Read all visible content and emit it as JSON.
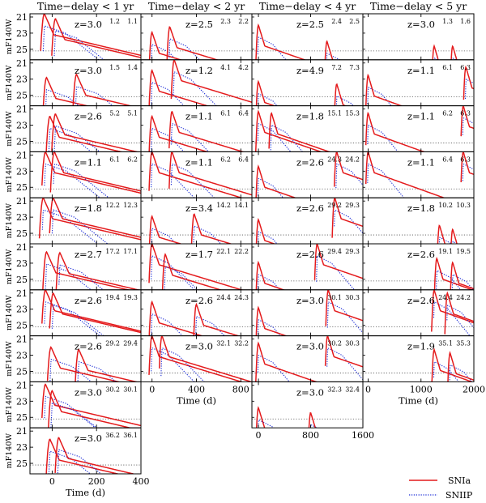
{
  "chart_data": {
    "type": "line",
    "figure_kind": "multi-panel light-curve grid",
    "y_axis_label": "mF140W",
    "y_axis_reversed": true,
    "y_ticks": [
      21,
      23,
      25
    ],
    "ylim": [
      26.3,
      20.6
    ],
    "threshold_mag": 25.2,
    "legend": [
      {
        "name": "SNIa",
        "color": "#e41a1c",
        "dash": "solid"
      },
      {
        "name": "SNIIP",
        "color": "#1f2fd6",
        "dash": "dotted"
      }
    ],
    "columns": [
      {
        "title": "Time−delay < 1 yr",
        "xlim": [
          -100,
          400
        ],
        "xticks": [
          0,
          200,
          400
        ],
        "xlabel": "Time (d)",
        "panels": [
          {
            "z": "z=3.0",
            "m": [
              "1.2",
              "1.1"
            ],
            "peaks": [
              {
                "t": -35,
                "m": 20.6
              },
              {
                "t": 15,
                "m": 21.2
              }
            ]
          },
          {
            "z": "z=3.0",
            "m": [
              "1.5",
              "1.4"
            ],
            "peaks": [
              {
                "t": -25,
                "m": 22.8
              },
              {
                "t": 110,
                "m": 22.4
              }
            ]
          },
          {
            "z": "z=2.6",
            "m": [
              "5.2",
              "5.1"
            ],
            "peaks": [
              {
                "t": -10,
                "m": 21.9
              },
              {
                "t": 15,
                "m": 21.6
              }
            ]
          },
          {
            "z": "z=1.1",
            "m": [
              "6.1",
              "6.2"
            ],
            "peaks": [
              {
                "t": -30,
                "m": 20.6
              },
              {
                "t": 10,
                "m": 20.6
              }
            ]
          },
          {
            "z": "z=1.8",
            "m": [
              "12.2",
              "12.3"
            ],
            "peaks": [
              {
                "t": -40,
                "m": 20.6
              },
              {
                "t": 5,
                "m": 20.6
              }
            ]
          },
          {
            "z": "z=2.7",
            "m": [
              "17.2",
              "17.1"
            ],
            "peaks": [
              {
                "t": -25,
                "m": 21.6
              },
              {
                "t": 35,
                "m": 21.7
              }
            ]
          },
          {
            "z": "z=2.6",
            "m": [
              "19.4",
              "19.3"
            ],
            "peaks": [
              {
                "t": -30,
                "m": 20.6
              },
              {
                "t": 5,
                "m": 21.0
              }
            ]
          },
          {
            "z": "z=2.6",
            "m": [
              "29.2",
              "29.4"
            ],
            "peaks": [
              {
                "t": -5,
                "m": 22.0
              },
              {
                "t": 120,
                "m": 22.3
              }
            ]
          },
          {
            "z": "z=3.0",
            "m": [
              "30.2",
              "30.1"
            ],
            "peaks": [
              {
                "t": -30,
                "m": 20.9
              },
              {
                "t": 0,
                "m": 21.7
              }
            ]
          },
          {
            "z": "z=3.0",
            "m": [
              "36.2",
              "36.1"
            ],
            "peaks": [
              {
                "t": -10,
                "m": 22.0
              },
              {
                "t": 30,
                "m": 21.8
              }
            ]
          }
        ]
      },
      {
        "title": "Time−delay < 2 yr",
        "xlim": [
          -100,
          900
        ],
        "xticks": [
          0,
          400,
          800
        ],
        "xlabel": "Time (d)",
        "panels": [
          {
            "z": "z=2.5",
            "m": [
              "2.3",
              "2.2"
            ],
            "peaks": [
              {
                "t": 0,
                "m": 22.9
              },
              {
                "t": 160,
                "m": 22.2
              }
            ]
          },
          {
            "z": "z=1.2",
            "m": [
              "4.1",
              "4.2"
            ],
            "peaks": [
              {
                "t": 0,
                "m": 21.9
              },
              {
                "t": 200,
                "m": 20.6
              }
            ]
          },
          {
            "z": "z=1.1",
            "m": [
              "6.1",
              "6.4"
            ],
            "peaks": [
              {
                "t": 0,
                "m": 21.9
              },
              {
                "t": 180,
                "m": 21.3
              }
            ]
          },
          {
            "z": "z=1.1",
            "m": [
              "6.2",
              "6.4"
            ],
            "peaks": [
              {
                "t": 0,
                "m": 20.6
              },
              {
                "t": 180,
                "m": 20.6
              }
            ]
          },
          {
            "z": "z=3.4",
            "m": [
              "14.2",
              "14.1"
            ],
            "peaks": [
              {
                "t": 0,
                "m": 22.9
              },
              {
                "t": 380,
                "m": 22.6
              }
            ]
          },
          {
            "z": "z=1.7",
            "m": [
              "22.1",
              "22.2"
            ],
            "peaks": [
              {
                "t": 0,
                "m": 20.6
              },
              {
                "t": 120,
                "m": 21.9
              }
            ]
          },
          {
            "z": "z=2.6",
            "m": [
              "24.4",
              "24.3"
            ],
            "peaks": [
              {
                "t": 0,
                "m": 22.1
              },
              {
                "t": 400,
                "m": 22.4
              }
            ]
          },
          {
            "z": "z=3.0",
            "m": [
              "32.1",
              "32.2"
            ],
            "peaks": [
              {
                "t": 0,
                "m": 20.6
              },
              {
                "t": 90,
                "m": 20.6
              }
            ]
          }
        ]
      },
      {
        "title": "Time−delay < 4 yr",
        "xlim": [
          -100,
          1600
        ],
        "xticks": [
          0,
          800,
          1600
        ],
        "xlabel": "",
        "panels": [
          {
            "z": "z=2.5",
            "m": [
              "2.4",
              "2.5"
            ],
            "peaks": [
              {
                "t": 0,
                "m": 22.0
              },
              {
                "t": 1050,
                "m": 24.0
              }
            ]
          },
          {
            "z": "z=4.9",
            "m": [
              "7.2",
              "7.3"
            ],
            "peaks": [
              {
                "t": 0,
                "m": 23.3
              },
              {
                "t": 1200,
                "m": 23.6
              }
            ]
          },
          {
            "z": "z=1.8",
            "m": [
              "15.1",
              "15.3"
            ],
            "peaks": [
              {
                "t": 0,
                "m": 21.3
              },
              {
                "t": 200,
                "m": 21.5
              }
            ]
          },
          {
            "z": "z=2.6",
            "m": [
              "24.3",
              "24.2"
            ],
            "peaks": [
              {
                "t": 0,
                "m": 22.4
              },
              {
                "t": 1200,
                "m": 20.6
              }
            ]
          },
          {
            "z": "z=2.6",
            "m": [
              "29.2",
              "29.3"
            ],
            "peaks": [
              {
                "t": 0,
                "m": 23.3
              },
              {
                "t": 1170,
                "m": 20.6
              }
            ]
          },
          {
            "z": "z=2.6",
            "m": [
              "29.4",
              "29.3"
            ],
            "peaks": [
              {
                "t": 0,
                "m": 22.9
              },
              {
                "t": 900,
                "m": 20.6
              }
            ]
          },
          {
            "z": "z=3.0",
            "m": [
              "30.1",
              "30.3"
            ],
            "peaks": [
              {
                "t": 0,
                "m": 22.8
              },
              {
                "t": 1070,
                "m": 20.6
              }
            ]
          },
          {
            "z": "z=3.0",
            "m": [
              "30.2",
              "30.3"
            ],
            "peaks": [
              {
                "t": 0,
                "m": 21.5
              },
              {
                "t": 1060,
                "m": 20.6
              }
            ]
          },
          {
            "z": "z=3.0",
            "m": [
              "32.3",
              "32.4"
            ],
            "peaks": [
              {
                "t": 0,
                "m": 23.8
              },
              {
                "t": 800,
                "m": 24.4
              }
            ]
          }
        ]
      },
      {
        "title": "Time−delay < 5 yr",
        "xlim": [
          -100,
          2000
        ],
        "xticks": [
          0,
          1000,
          2000
        ],
        "xlabel": "Time (d)",
        "panels": [
          {
            "z": "z=3.0",
            "m": [
              "1.3",
              "1.6"
            ],
            "peaks": [
              {
                "t": 1250,
                "m": 24.6
              },
              {
                "t": 1600,
                "m": 24.6
              }
            ]
          },
          {
            "z": "z=1.1",
            "m": [
              "6.1",
              "6.3"
            ],
            "peaks": [
              {
                "t": 0,
                "m": 22.5
              },
              {
                "t": 1850,
                "m": 21.5
              }
            ]
          },
          {
            "z": "z=1.1",
            "m": [
              "6.2",
              "6.3"
            ],
            "peaks": [
              {
                "t": 0,
                "m": 21.5
              },
              {
                "t": 1800,
                "m": 20.6
              }
            ]
          },
          {
            "z": "z=1.1",
            "m": [
              "6.4",
              "6.3"
            ],
            "peaks": [
              {
                "t": 0,
                "m": 20.6
              },
              {
                "t": 1800,
                "m": 20.6
              }
            ]
          },
          {
            "z": "z=1.8",
            "m": [
              "10.2",
              "10.3"
            ],
            "peaks": [
              {
                "t": 1350,
                "m": 24.0
              },
              {
                "t": 1600,
                "m": 24.5
              }
            ]
          },
          {
            "z": "z=2.6",
            "m": [
              "19.1",
              "19.5"
            ],
            "peaks": [
              {
                "t": 1300,
                "m": 22.4
              },
              {
                "t": 1600,
                "m": 22.9
              }
            ]
          },
          {
            "z": "z=2.6",
            "m": [
              "24.4",
              "24.2"
            ],
            "peaks": [
              {
                "t": 1250,
                "m": 20.6
              },
              {
                "t": 1500,
                "m": 21.0
              }
            ]
          },
          {
            "z": "z=1.9",
            "m": [
              "35.1",
              "35.3"
            ],
            "peaks": [
              {
                "t": 1250,
                "m": 22.3
              },
              {
                "t": 1550,
                "m": 22.7
              }
            ]
          }
        ]
      }
    ]
  }
}
